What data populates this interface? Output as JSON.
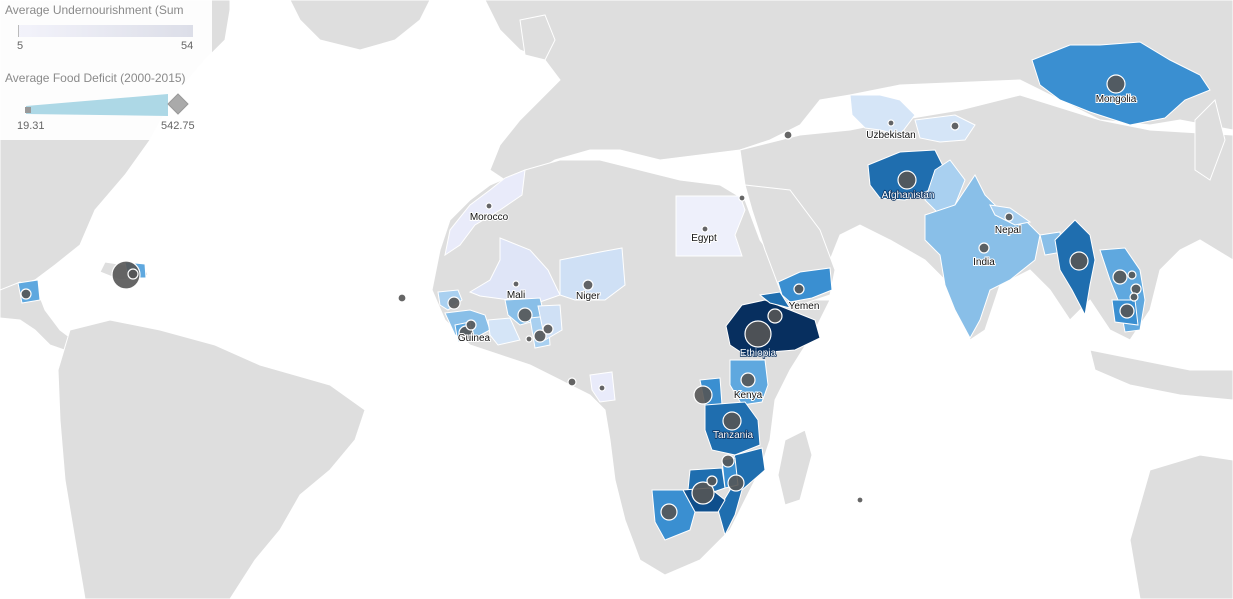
{
  "legend": {
    "undernourishment_title": "Average Undernourishment (Sum",
    "undernourishment_min": "5",
    "undernourishment_max": "54",
    "food_deficit_title": "Average Food Deficit (2000-2015)",
    "food_deficit_min": "19.31",
    "food_deficit_max": "542.75"
  },
  "colors": {
    "ocean": "#ffffff",
    "land_no_data": "#dedede",
    "border": "#ffffff",
    "scale_low": "#f3f3fb",
    "scale_mid": "#89bfe8",
    "scale_high": "#072f5f",
    "bubble": "#555555"
  },
  "labels": {
    "morocco": "Morocco",
    "egypt": "Egypt",
    "mali": "Mali",
    "niger": "Niger",
    "guinea": "Guinea",
    "yemen": "Yemen",
    "ethiopia": "Ethiopia",
    "kenya": "Kenya",
    "tanzania": "Tanzania",
    "uzbekistan": "Uzbekistan",
    "afghanistan": "Afghanistan",
    "nepal": "Nepal",
    "india": "India",
    "mongolia": "Mongolia"
  }
}
